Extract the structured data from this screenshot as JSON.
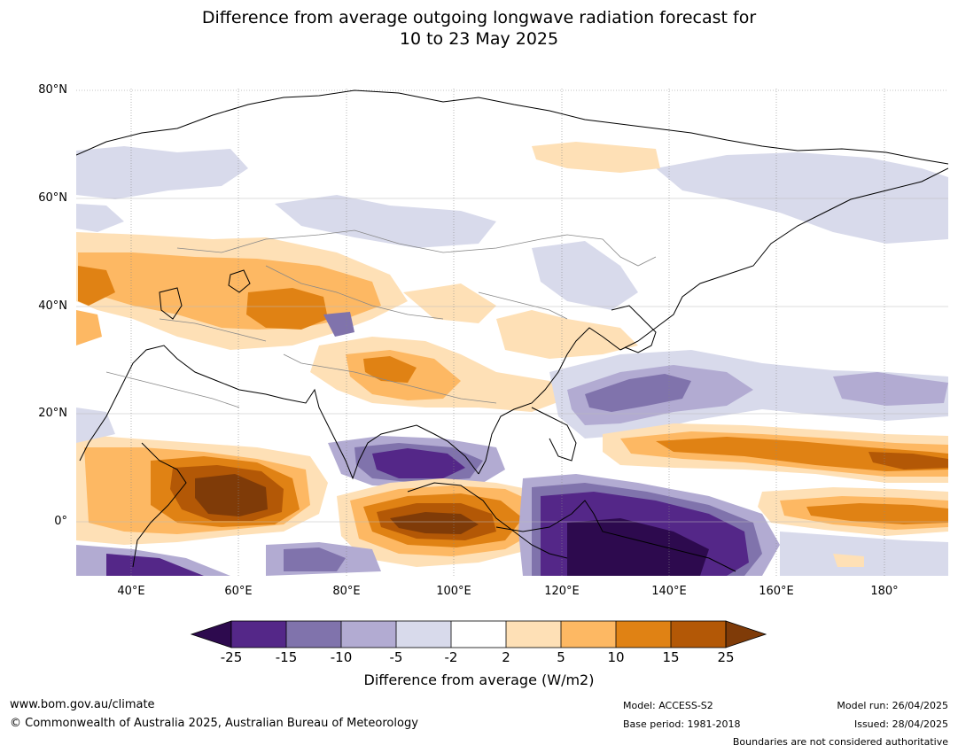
{
  "title_line1": "Difference from average outgoing longwave radiation forecast for",
  "title_line2": "10 to 23 May 2025",
  "lat_labels": [
    "80°N",
    "60°N",
    "40°N",
    "20°N",
    "0°"
  ],
  "lon_labels": [
    "40°E",
    "60°E",
    "80°E",
    "100°E",
    "120°E",
    "140°E",
    "160°E",
    "180°"
  ],
  "colorbar": {
    "ticks": [
      "-25",
      "-15",
      "-10",
      "-5",
      "-2",
      "2",
      "5",
      "10",
      "15",
      "25"
    ],
    "title": "Difference from average (W/m2)",
    "colors": {
      "lt_neg25": "#2d0a4e",
      "neg25_neg15": "#542788",
      "neg15_neg10": "#8073ac",
      "neg10_neg5": "#b2abd2",
      "neg5_neg2": "#d8daeb",
      "neg2_2": "#ffffff",
      "p2_5": "#fee0b6",
      "p5_10": "#fdb863",
      "p10_15": "#e08214",
      "p15_25": "#b35806",
      "gt25": "#7f3b08"
    }
  },
  "footer": {
    "website": "www.bom.gov.au/climate",
    "copyright": "© Commonwealth of Australia 2025, Australian Bureau of Meteorology",
    "model": "Model: ACCESS-S2",
    "base_period": "Base period: 1981-2018",
    "model_run": "Model run: 26/04/2025",
    "issued": "Issued: 28/04/2025",
    "disclaimer": "Boundaries are not considered authoritative"
  }
}
